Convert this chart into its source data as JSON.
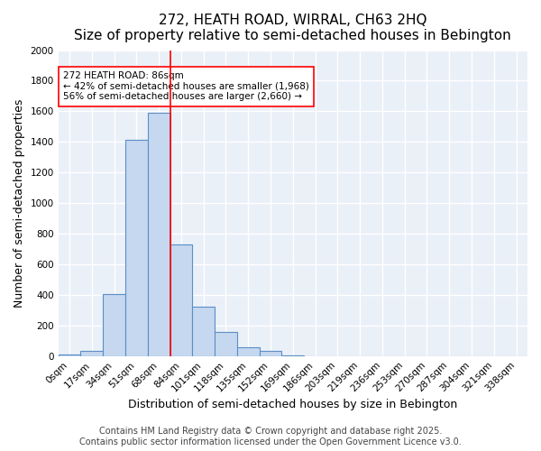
{
  "title": "272, HEATH ROAD, WIRRAL, CH63 2HQ",
  "subtitle": "Size of property relative to semi-detached houses in Bebington",
  "xlabel": "Distribution of semi-detached houses by size in Bebington",
  "ylabel": "Number of semi-detached properties",
  "bin_labels": [
    "0sqm",
    "17sqm",
    "34sqm",
    "51sqm",
    "68sqm",
    "84sqm",
    "101sqm",
    "118sqm",
    "135sqm",
    "152sqm",
    "169sqm",
    "186sqm",
    "203sqm",
    "219sqm",
    "236sqm",
    "253sqm",
    "270sqm",
    "287sqm",
    "304sqm",
    "321sqm",
    "338sqm"
  ],
  "bar_values": [
    10,
    35,
    405,
    1415,
    1590,
    730,
    325,
    155,
    55,
    35,
    5,
    0,
    0,
    0,
    0,
    0,
    0,
    0,
    0,
    0,
    0
  ],
  "bar_color": "#c5d8f0",
  "bar_edge_color": "#5b8ec5",
  "red_line_x": 4.5,
  "annotation_text": "272 HEATH ROAD: 86sqm\n← 42% of semi-detached houses are smaller (1,968)\n56% of semi-detached houses are larger (2,660) →",
  "annotation_box_color": "white",
  "annotation_box_edge": "red",
  "ylim": [
    0,
    2000
  ],
  "yticks": [
    0,
    200,
    400,
    600,
    800,
    1000,
    1200,
    1400,
    1600,
    1800,
    2000
  ],
  "background_color": "#eaf0f8",
  "grid_color": "white",
  "footer_text": "Contains HM Land Registry data © Crown copyright and database right 2025.\nContains public sector information licensed under the Open Government Licence v3.0.",
  "title_fontsize": 11,
  "label_fontsize": 9,
  "tick_fontsize": 7.5,
  "footer_fontsize": 7,
  "annotation_fontsize": 7.5
}
